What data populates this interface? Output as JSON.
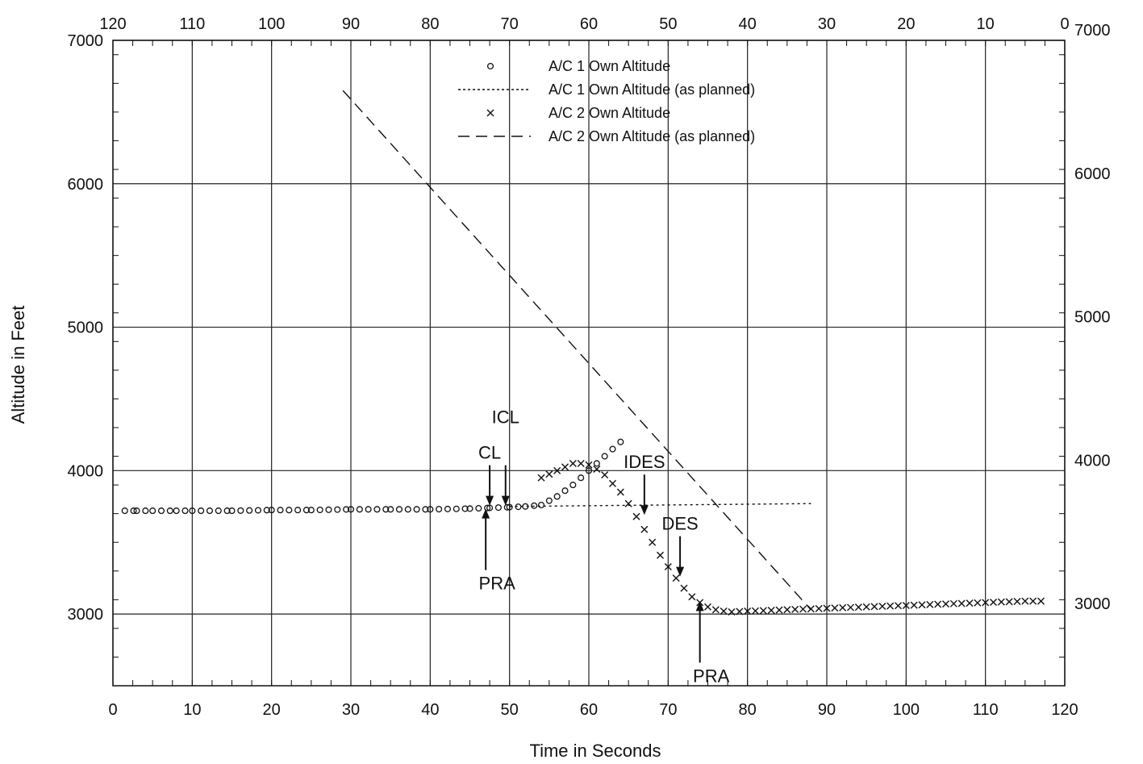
{
  "chart_data": {
    "type": "line",
    "xlabel": "Time in Seconds",
    "ylabel": "Altitude in Feet",
    "xlim": [
      0,
      120
    ],
    "ylim": [
      2500,
      7000
    ],
    "top_axis": {
      "ticks": [
        120,
        110,
        100,
        90,
        80,
        70,
        60,
        50,
        40,
        30,
        20,
        10,
        0
      ],
      "reversed": true
    },
    "x_ticks": [
      0,
      10,
      20,
      30,
      40,
      50,
      60,
      70,
      80,
      90,
      100,
      110,
      120
    ],
    "y_ticks": [
      3000,
      4000,
      5000,
      6000,
      7000
    ],
    "right_y_ticks": [
      3000,
      4000,
      5000,
      6000,
      7000
    ],
    "grid": true,
    "legend_placement": "top-center",
    "series": [
      {
        "name": "A/C 1 Own Altitude",
        "marker": "circle",
        "x": [
          1.5,
          3,
          5,
          8,
          10,
          15,
          20,
          25,
          30,
          35,
          40,
          45,
          47.5,
          50,
          52,
          54,
          55,
          56,
          57,
          58,
          59,
          60,
          61,
          62,
          63,
          64
        ],
        "y": [
          3720,
          3720,
          3720,
          3720,
          3720,
          3720,
          3725,
          3725,
          3730,
          3730,
          3730,
          3735,
          3740,
          3745,
          3750,
          3760,
          3790,
          3820,
          3860,
          3900,
          3950,
          4000,
          4050,
          4100,
          4150,
          4200
        ]
      },
      {
        "name": "A/C 1 Own Altitude (as planned)",
        "style": "dotted",
        "x": [
          50,
          88
        ],
        "y": [
          3750,
          3770
        ]
      },
      {
        "name": "A/C 2 Own Altitude",
        "marker": "x",
        "x": [
          54,
          56,
          58,
          59,
          60,
          61,
          62,
          63,
          64,
          65,
          66,
          67,
          68,
          69,
          70,
          71,
          72,
          73,
          74,
          75,
          76,
          77,
          78,
          80,
          85,
          90,
          95,
          100,
          105,
          110,
          115,
          117
        ],
        "y": [
          3950,
          4000,
          4050,
          4050,
          4040,
          4010,
          3970,
          3910,
          3850,
          3770,
          3680,
          3590,
          3500,
          3410,
          3330,
          3250,
          3180,
          3120,
          3080,
          3050,
          3030,
          3020,
          3015,
          3020,
          3030,
          3040,
          3050,
          3060,
          3070,
          3080,
          3090,
          3090
        ]
      },
      {
        "name": "A/C 2 Own Altitude (as planned)",
        "style": "dashed",
        "x": [
          29,
          88
        ],
        "y": [
          6650,
          3030
        ]
      }
    ],
    "annotations": [
      {
        "text": "CL",
        "x": 47.5,
        "y": 3745,
        "direction": "down"
      },
      {
        "text": "ICL",
        "x": 49.5,
        "y": 3745,
        "direction": "down"
      },
      {
        "text": "IDES",
        "x": 67,
        "y": 3680,
        "direction": "down"
      },
      {
        "text": "DES",
        "x": 71.5,
        "y": 3250,
        "direction": "down"
      },
      {
        "text": "PRA",
        "x": 47,
        "y": 3745,
        "direction": "up"
      },
      {
        "text": "PRA",
        "x": 74,
        "y": 3100,
        "direction": "up"
      }
    ]
  }
}
